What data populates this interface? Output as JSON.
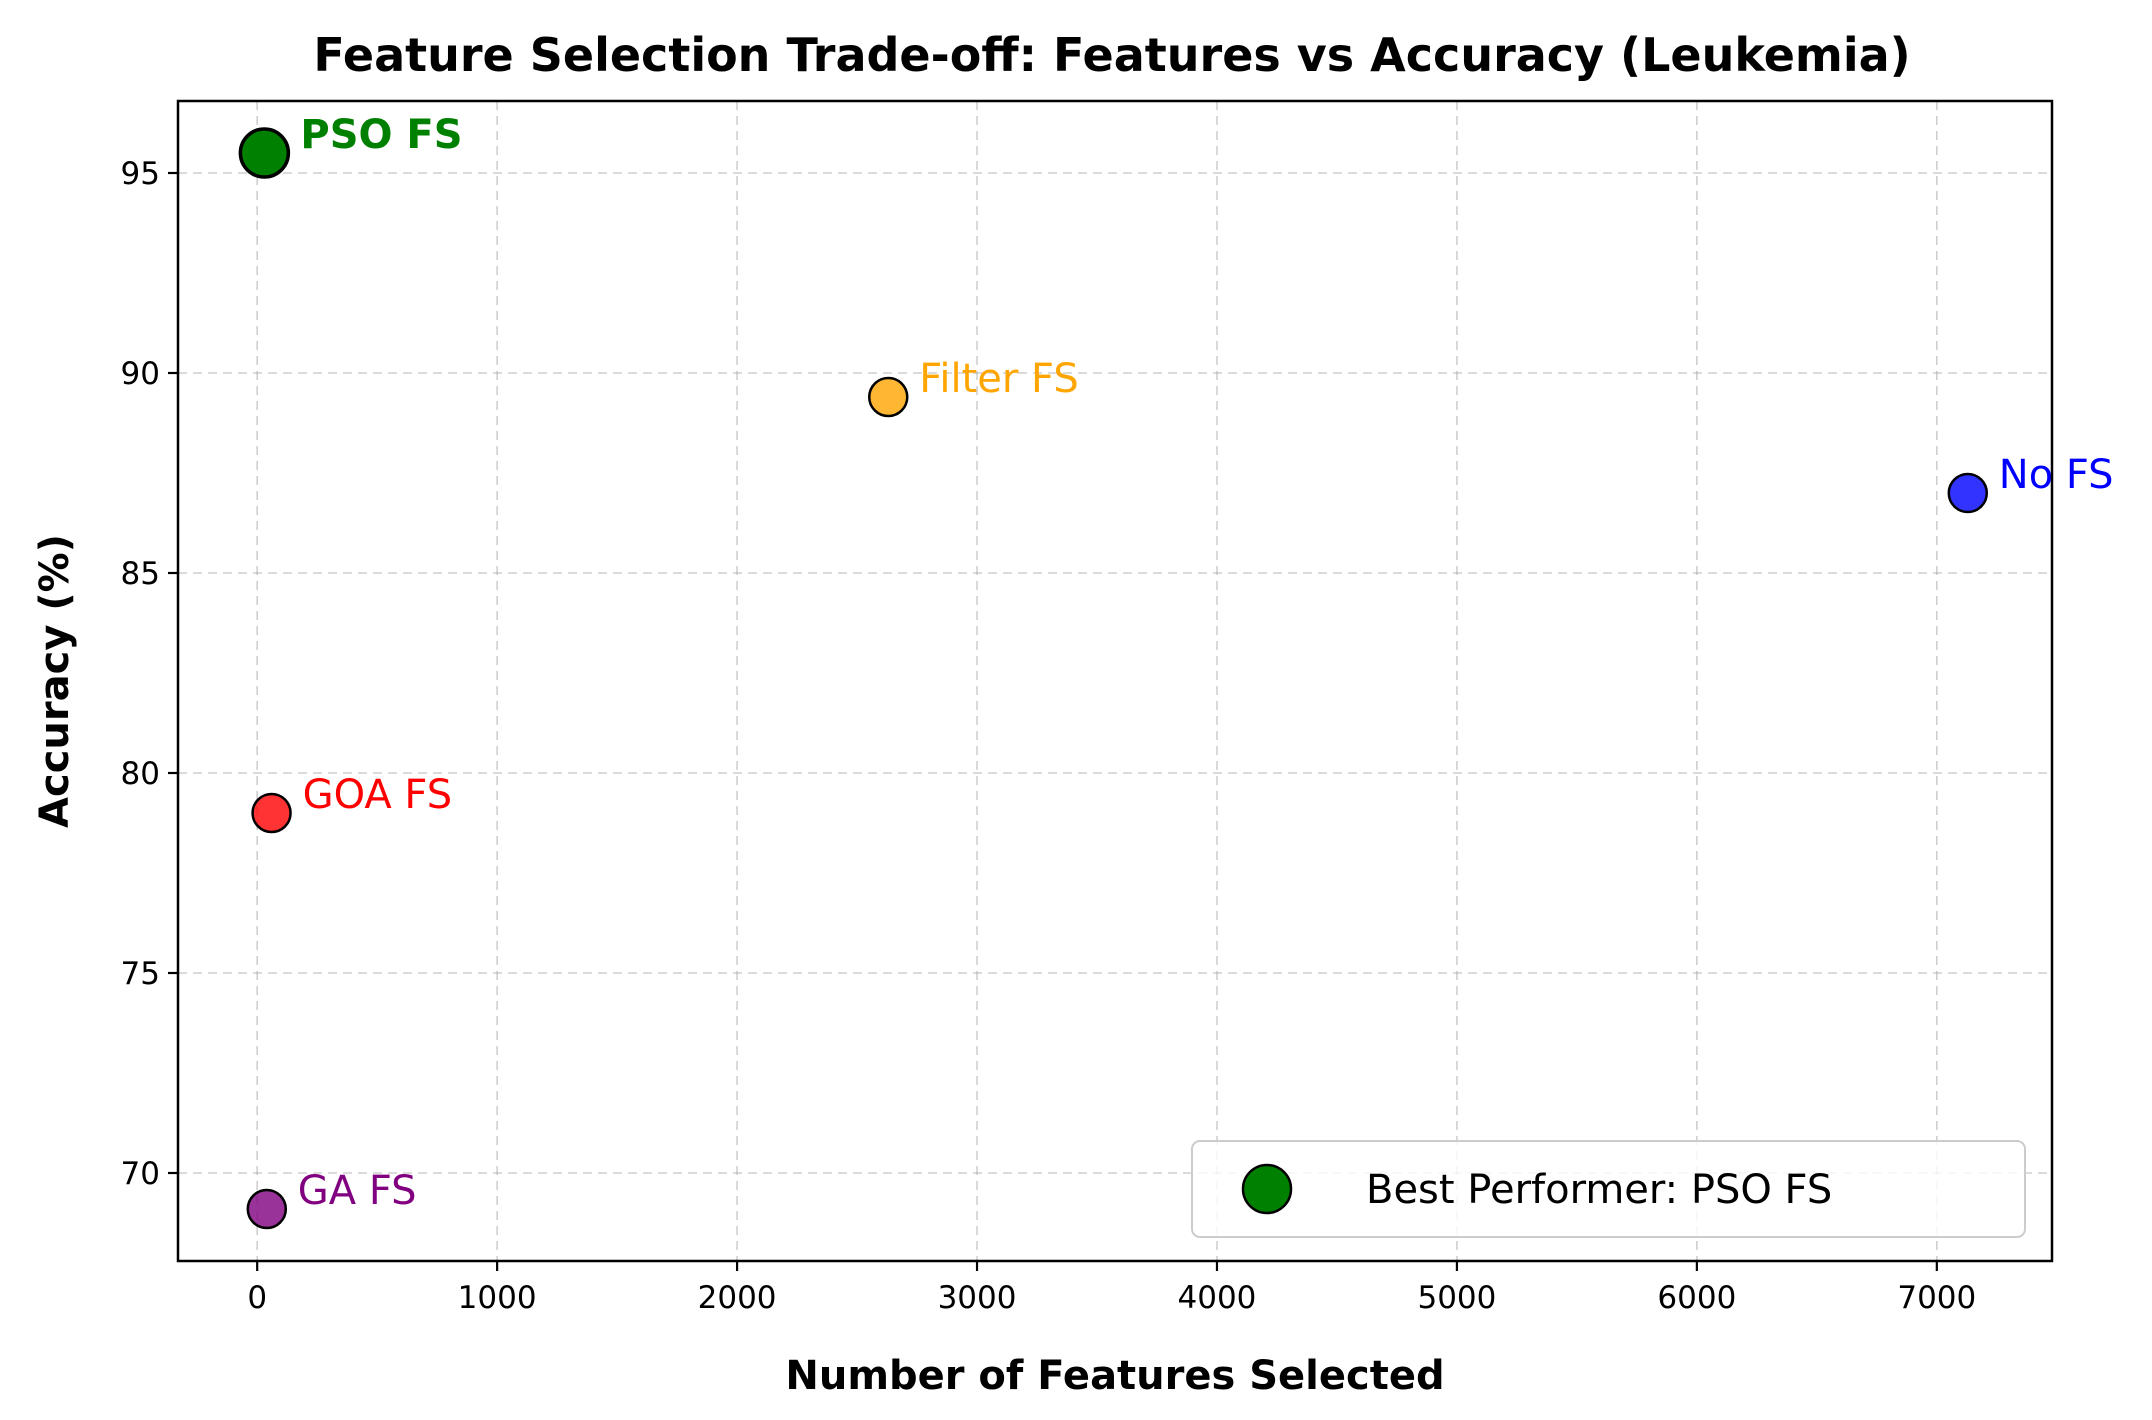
{
  "chart_data": {
    "type": "scatter",
    "title": "Feature Selection Trade-off: Features vs Accuracy (Leukemia)",
    "xlabel": "Number of Features Selected",
    "ylabel": "Accuracy (%)",
    "xlim": [
      -330,
      7480
    ],
    "ylim": [
      67.8,
      96.8
    ],
    "xticks": [
      0,
      1000,
      2000,
      3000,
      4000,
      5000,
      6000,
      7000
    ],
    "yticks": [
      70,
      75,
      80,
      85,
      90,
      95
    ],
    "grid": true,
    "points": [
      {
        "label": "No FS",
        "x": 7129,
        "y": 87.0,
        "color": "#0000ff",
        "best": false
      },
      {
        "label": "Filter FS",
        "x": 2630,
        "y": 89.4,
        "color": "#ffa500",
        "best": false
      },
      {
        "label": "PSO FS",
        "x": 30,
        "y": 95.5,
        "color": "#008000",
        "best": true
      },
      {
        "label": "GOA FS",
        "x": 60,
        "y": 79.0,
        "color": "#ff0000",
        "best": false
      },
      {
        "label": "GA FS",
        "x": 40,
        "y": 69.1,
        "color": "#800080",
        "best": false
      }
    ],
    "legend": {
      "position": "lower right",
      "entries": [
        {
          "label": "Best Performer: PSO FS",
          "color": "#008000"
        }
      ]
    }
  }
}
